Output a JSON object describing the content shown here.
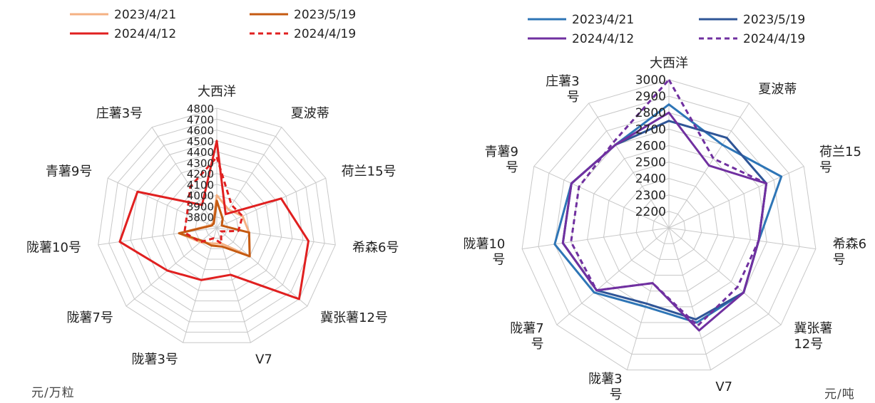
{
  "chart_data": [
    {
      "type": "radar",
      "unit_label": "元/万粒",
      "categories": [
        "大西洋",
        "夏波蒂",
        "荷兰15号",
        "希森6号",
        "冀张薯12号",
        "V7",
        "陇薯3号",
        "陇薯7号",
        "陇薯10号",
        "青薯9号",
        "庄薯3号"
      ],
      "ticks": [
        3800,
        3900,
        4000,
        4100,
        4200,
        4300,
        4400,
        4500,
        4600,
        4700,
        4800
      ],
      "ylim": [
        3700,
        4800
      ],
      "legend_position": "top",
      "series": [
        {
          "name": "2023/4/21",
          "color": "#f4b183",
          "dash": false,
          "values": [
            4000,
            3900,
            3960,
            4000,
            4100,
            3850,
            3850,
            3900,
            4050,
            3760,
            3760
          ]
        },
        {
          "name": "2023/5/19",
          "color": "#c55a11",
          "dash": false,
          "values": [
            3950,
            3800,
            3750,
            4000,
            4100,
            3880,
            3870,
            3880,
            4050,
            3750,
            3750
          ]
        },
        {
          "name": "2024/4/12",
          "color": "#e02020",
          "dash": false,
          "values": [
            4500,
            3850,
            4350,
            4550,
            4700,
            4150,
            4200,
            4300,
            4600,
            4500,
            3950
          ]
        },
        {
          "name": "2024/4/19",
          "color": "#e02020",
          "dash": true,
          "values": [
            4350,
            3950,
            3960,
            3900,
            3750,
            3850,
            3800,
            3900,
            4000,
            4000,
            4150
          ]
        }
      ]
    },
    {
      "type": "radar",
      "unit_label": "元/吨",
      "categories": [
        "大西洋",
        "夏波蒂",
        "荷兰15号",
        "希森6号",
        "冀张薯12号",
        "V7",
        "陇薯3号",
        "陇薯7号",
        "陇薯10号",
        "青薯9号",
        "庄薯3号"
      ],
      "category_lines": [
        [
          "大西洋"
        ],
        [
          "夏波蒂"
        ],
        [
          "荷兰15",
          "号"
        ],
        [
          "希森6",
          "号"
        ],
        [
          "冀张薯",
          "12号"
        ],
        [
          "V7"
        ],
        [
          "陇薯3",
          "号"
        ],
        [
          "陇薯7",
          "号"
        ],
        [
          "陇薯10",
          "号"
        ],
        [
          "青薯9",
          "号"
        ],
        [
          "庄薯3",
          "号"
        ]
      ],
      "ticks": [
        2200,
        2300,
        2400,
        2500,
        2600,
        2700,
        2800,
        2900,
        3000
      ],
      "ylim": [
        2100,
        3000
      ],
      "legend_position": "top",
      "series": [
        {
          "name": "2023/4/21",
          "color": "#2e75b6",
          "dash": false,
          "values": [
            2850,
            2700,
            2850,
            2650,
            2700,
            2700,
            2600,
            2700,
            2800,
            2750,
            2700
          ]
        },
        {
          "name": "2023/5/19",
          "color": "#2f5597",
          "dash": false,
          "values": [
            2750,
            2750,
            2750,
            2650,
            2700,
            2680,
            2580,
            2680,
            2750,
            2750,
            2700
          ]
        },
        {
          "name": "2024/4/12",
          "color": "#7030a0",
          "dash": false,
          "values": [
            2800,
            2550,
            2750,
            2650,
            2700,
            2750,
            2450,
            2680,
            2750,
            2750,
            2700
          ]
        },
        {
          "name": "2024/4/19",
          "color": "#7030a0",
          "dash": true,
          "values": [
            3000,
            2600,
            2750,
            2650,
            2650,
            2720,
            2450,
            2680,
            2700,
            2700,
            2720
          ]
        }
      ]
    }
  ]
}
